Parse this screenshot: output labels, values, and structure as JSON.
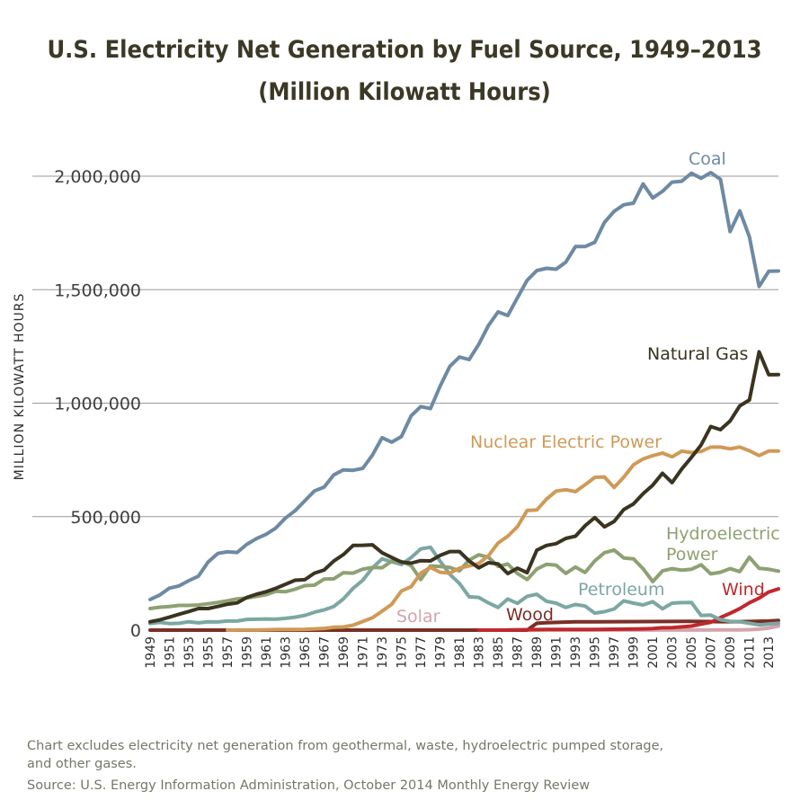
{
  "chart_data": {
    "type": "line",
    "title": "U.S. Electricity Net Generation by Fuel Source, 1949–2013",
    "subtitle": "(Million Kilowatt Hours)",
    "ylabel": "MILLION KILOWATT HOURS",
    "xlabel": "",
    "ylim": [
      0,
      2000000
    ],
    "y_ticks": [
      0,
      500000,
      1000000,
      1500000,
      2000000
    ],
    "y_tick_labels": [
      "0",
      "500,000",
      "1,000,000",
      "1,500,000",
      "2,000,000"
    ],
    "x_tick_labels": [
      "1949",
      "1951",
      "1953",
      "1955",
      "1957",
      "1959",
      "1961",
      "1963",
      "1965",
      "1967",
      "1969",
      "1971",
      "1973",
      "1975",
      "1977",
      "1979",
      "1981",
      "1983",
      "1985",
      "1987",
      "1989",
      "1991",
      "1993",
      "1995",
      "1997",
      "1999",
      "2001",
      "2003",
      "2005",
      "2007",
      "2009",
      "2011",
      "2013"
    ],
    "grid": "horizontal",
    "legend": "inline labels",
    "notes": [
      "Chart excludes electricity net generation from geothermal, waste, hydroelectric pumped storage,",
      "and other gases.",
      "Source: U.S. Energy Information Administration, October 2014 Monthly Energy Review"
    ],
    "series": [
      {
        "name": "Coal",
        "color": "#6e8aa3",
        "x": [
          1949,
          1950,
          1951,
          1952,
          1953,
          1954,
          1955,
          1956,
          1957,
          1958,
          1959,
          1960,
          1961,
          1962,
          1963,
          1964,
          1965,
          1966,
          1967,
          1968,
          1969,
          1970,
          1971,
          1972,
          1973,
          1974,
          1975,
          1976,
          1977,
          1978,
          1979,
          1980,
          1981,
          1982,
          1983,
          1984,
          1985,
          1986,
          1987,
          1988,
          1989,
          1990,
          1991,
          1992,
          1993,
          1994,
          1995,
          1996,
          1997,
          1998,
          1999,
          2000,
          2001,
          2002,
          2003,
          2004,
          2005,
          2006,
          2007,
          2008,
          2009,
          2010,
          2011,
          2012,
          2013,
          2014
        ],
        "values": [
          135000,
          155000,
          185000,
          195000,
          218000,
          238000,
          300000,
          338000,
          345000,
          342000,
          378000,
          403000,
          422000,
          450000,
          494000,
          526000,
          570000,
          613000,
          630000,
          684000,
          706000,
          704000,
          713000,
          771000,
          848000,
          828000,
          853000,
          944000,
          985000,
          976000,
          1075000,
          1162000,
          1203000,
          1192000,
          1259000,
          1342000,
          1402000,
          1386000,
          1464000,
          1541000,
          1584000,
          1594000,
          1590000,
          1621000,
          1690000,
          1690000,
          1709000,
          1796000,
          1845000,
          1874000,
          1881000,
          1966000,
          1904000,
          1933000,
          1974000,
          1978000,
          2013000,
          1991000,
          2016000,
          1986000,
          1756000,
          1847000,
          1733000,
          1514000,
          1581000,
          1582000
        ]
      },
      {
        "name": "Natural Gas",
        "color": "#3a3420",
        "x": [
          1949,
          1950,
          1951,
          1952,
          1953,
          1954,
          1955,
          1956,
          1957,
          1958,
          1959,
          1960,
          1961,
          1962,
          1963,
          1964,
          1965,
          1966,
          1967,
          1968,
          1969,
          1970,
          1971,
          1972,
          1973,
          1974,
          1975,
          1976,
          1977,
          1978,
          1979,
          1980,
          1981,
          1982,
          1983,
          1984,
          1985,
          1986,
          1987,
          1988,
          1989,
          1990,
          1991,
          1992,
          1993,
          1994,
          1995,
          1996,
          1997,
          1998,
          1999,
          2000,
          2001,
          2002,
          2003,
          2004,
          2005,
          2006,
          2007,
          2008,
          2009,
          2010,
          2011,
          2012,
          2013,
          2014
        ],
        "values": [
          37000,
          45000,
          57000,
          70000,
          82000,
          95000,
          95000,
          104000,
          114000,
          120000,
          144000,
          158000,
          169000,
          184000,
          202000,
          220000,
          222000,
          251000,
          265000,
          304000,
          333000,
          373000,
          374000,
          376000,
          341000,
          320000,
          300000,
          295000,
          306000,
          305000,
          329000,
          346000,
          346000,
          305000,
          274000,
          297000,
          292000,
          249000,
          273000,
          253000,
          352000,
          373000,
          381000,
          404000,
          414000,
          460000,
          496000,
          455000,
          479000,
          531000,
          556000,
          601000,
          639000,
          691000,
          650000,
          710000,
          761000,
          816000,
          897000,
          883000,
          921000,
          988000,
          1014000,
          1226000,
          1125000,
          1126000
        ]
      },
      {
        "name": "Nuclear Electric Power",
        "color": "#cf9a57",
        "x": [
          1957,
          1958,
          1959,
          1960,
          1961,
          1962,
          1963,
          1964,
          1965,
          1966,
          1967,
          1968,
          1969,
          1970,
          1971,
          1972,
          1973,
          1974,
          1975,
          1976,
          1977,
          1978,
          1979,
          1980,
          1981,
          1982,
          1983,
          1984,
          1985,
          1986,
          1987,
          1988,
          1989,
          1990,
          1991,
          1992,
          1993,
          1994,
          1995,
          1996,
          1997,
          1998,
          1999,
          2000,
          2001,
          2002,
          2003,
          2004,
          2005,
          2006,
          2007,
          2008,
          2009,
          2010,
          2011,
          2012,
          2013,
          2014
        ],
        "values": [
          10,
          200,
          200,
          500,
          1700,
          2300,
          3200,
          3300,
          3700,
          5500,
          7700,
          12500,
          13900,
          21800,
          38100,
          54100,
          83500,
          114000,
          172500,
          191100,
          250900,
          276400,
          255200,
          251100,
          272700,
          282800,
          293700,
          327600,
          383700,
          414000,
          455300,
          527000,
          529400,
          576900,
          612600,
          618800,
          610300,
          640400,
          673400,
          674700,
          628600,
          673700,
          728300,
          753900,
          768800,
          780100,
          763700,
          788500,
          782000,
          787200,
          806400,
          806200,
          798900,
          806900,
          790200,
          769300,
          789000,
          789100
        ]
      },
      {
        "name": "Hydroelectric Power",
        "color": "#8ea172",
        "x": [
          1949,
          1950,
          1951,
          1952,
          1953,
          1954,
          1955,
          1956,
          1957,
          1958,
          1959,
          1960,
          1961,
          1962,
          1963,
          1964,
          1965,
          1966,
          1967,
          1968,
          1969,
          1970,
          1971,
          1972,
          1973,
          1974,
          1975,
          1976,
          1977,
          1978,
          1979,
          1980,
          1981,
          1982,
          1983,
          1984,
          1985,
          1986,
          1987,
          1988,
          1989,
          1990,
          1991,
          1992,
          1993,
          1994,
          1995,
          1996,
          1997,
          1998,
          1999,
          2000,
          2001,
          2002,
          2003,
          2004,
          2005,
          2006,
          2007,
          2008,
          2009,
          2010,
          2011,
          2012,
          2013,
          2014
        ],
        "values": [
          95000,
          101000,
          104000,
          109000,
          109000,
          111000,
          116000,
          122000,
          129000,
          138000,
          141000,
          149000,
          156000,
          171000,
          169000,
          180000,
          196000,
          198000,
          225000,
          226000,
          253000,
          251000,
          269000,
          276000,
          275000,
          304000,
          302000,
          284000,
          223000,
          283000,
          280000,
          276000,
          261000,
          309000,
          332000,
          321000,
          281000,
          291000,
          250000,
          223000,
          269000,
          290000,
          286000,
          250000,
          278000,
          254000,
          305000,
          341000,
          353000,
          318000,
          314000,
          271000,
          214000,
          261000,
          271000,
          264000,
          268000,
          288000,
          248000,
          255000,
          271000,
          258000,
          321000,
          272000,
          268000,
          260000
        ]
      },
      {
        "name": "Petroleum",
        "color": "#7ca7a2",
        "x": [
          1949,
          1950,
          1951,
          1952,
          1953,
          1954,
          1955,
          1956,
          1957,
          1958,
          1959,
          1960,
          1961,
          1962,
          1963,
          1964,
          1965,
          1966,
          1967,
          1968,
          1969,
          1970,
          1971,
          1972,
          1973,
          1974,
          1975,
          1976,
          1977,
          1978,
          1979,
          1980,
          1981,
          1982,
          1983,
          1984,
          1985,
          1986,
          1987,
          1988,
          1989,
          1990,
          1991,
          1992,
          1993,
          1994,
          1995,
          1996,
          1997,
          1998,
          1999,
          2000,
          2001,
          2002,
          2003,
          2004,
          2005,
          2006,
          2007,
          2008,
          2009,
          2010,
          2011,
          2012,
          2013,
          2014
        ],
        "values": [
          29000,
          34000,
          29000,
          30000,
          37000,
          32000,
          37000,
          36000,
          40000,
          40000,
          47000,
          48000,
          49000,
          48000,
          52000,
          57000,
          65000,
          79000,
          89000,
          104000,
          138000,
          184000,
          220000,
          274000,
          314000,
          301000,
          289000,
          320000,
          358000,
          365000,
          304000,
          246000,
          206000,
          147000,
          144000,
          120000,
          100000,
          137000,
          118000,
          149000,
          158000,
          127000,
          119000,
          100000,
          113000,
          106000,
          75000,
          81000,
          93000,
          129000,
          119000,
          111000,
          125000,
          94000,
          119000,
          121000,
          122000,
          64000,
          66000,
          46000,
          39000,
          37000,
          30000,
          23000,
          27000,
          30000
        ]
      },
      {
        "name": "Wind",
        "color": "#c0282d",
        "x": [
          1983,
          1985,
          1990,
          1995,
          2000,
          2001,
          2002,
          2003,
          2004,
          2005,
          2006,
          2007,
          2008,
          2009,
          2010,
          2011,
          2012,
          2013,
          2014
        ],
        "values": [
          3,
          6,
          2800,
          3200,
          5600,
          6700,
          10400,
          11200,
          14100,
          17800,
          26600,
          34400,
          55400,
          73900,
          94700,
          120200,
          140800,
          167800,
          181700
        ]
      },
      {
        "name": "Wood",
        "color": "#7a2f26",
        "x": [
          1949,
          1988,
          1989,
          1990,
          1993,
          1995,
          2000,
          2005,
          2008,
          2010,
          2013,
          2014
        ],
        "values": [
          0,
          0,
          30000,
          32500,
          37000,
          36500,
          37500,
          38800,
          37300,
          37200,
          40000,
          42300
        ]
      },
      {
        "name": "Solar",
        "color": "#d4a3ac",
        "x": [
          1984,
          1990,
          2000,
          2005,
          2008,
          2010,
          2011,
          2012,
          2013,
          2014
        ],
        "values": [
          0,
          367,
          493,
          550,
          864,
          1212,
          1818,
          4327,
          9036,
          17691
        ]
      }
    ]
  }
}
